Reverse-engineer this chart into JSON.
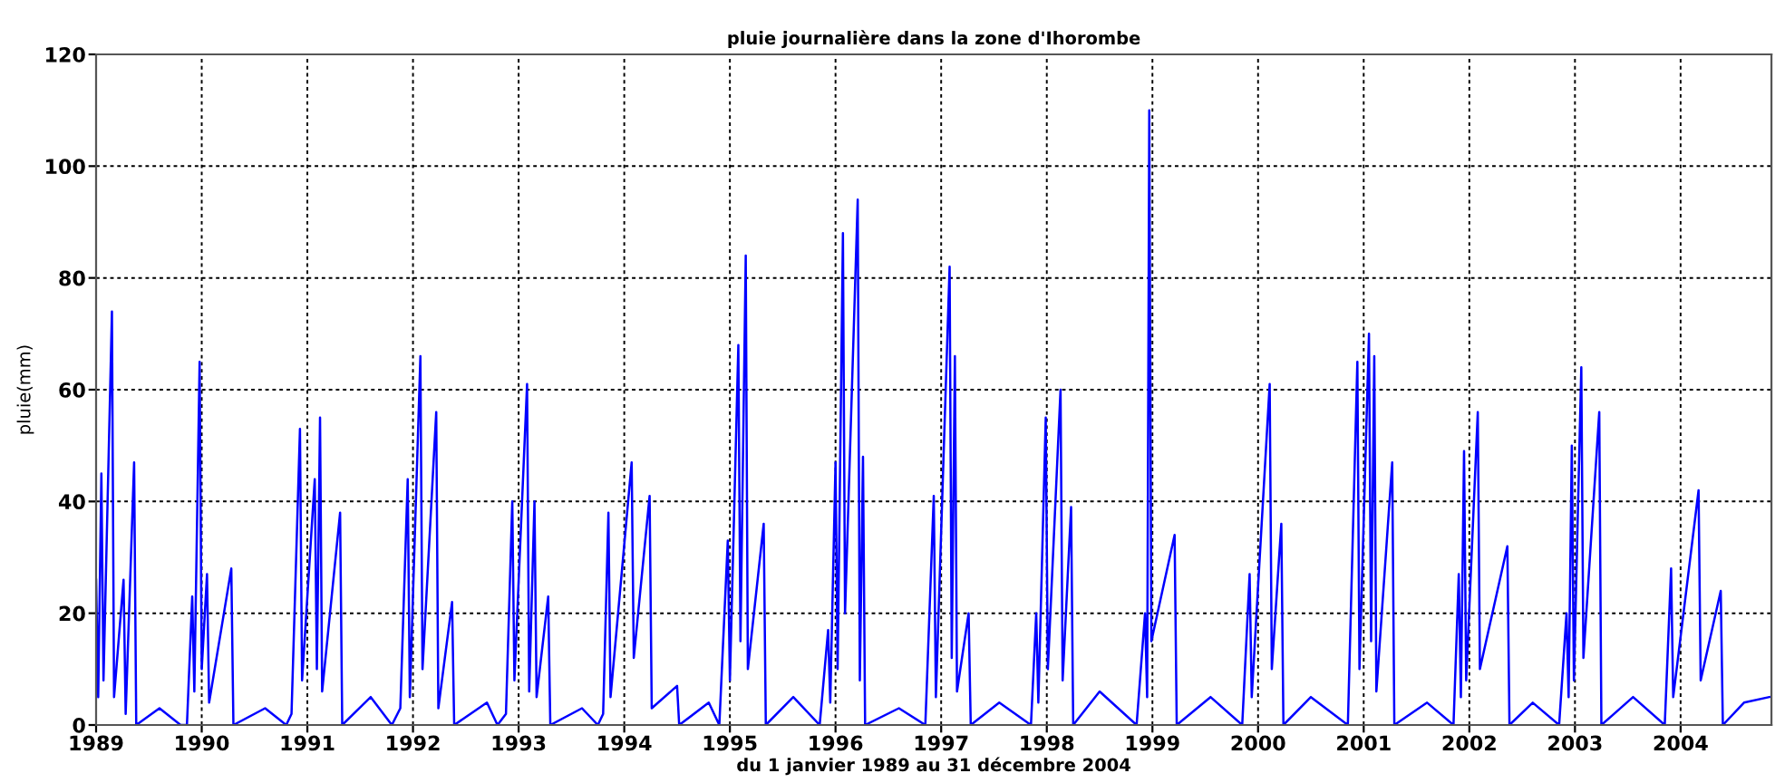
{
  "chart_data": {
    "type": "line",
    "title": "pluie journalière dans la zone d'Ihorombe",
    "xlabel": "du 1 janvier 1989 au 31 décembre 2004",
    "ylabel": "pluie(mm)",
    "series": [
      {
        "color": "#0000ff",
        "x": [
          1989.0,
          1989.02,
          1989.05,
          1989.07,
          1989.15,
          1989.17,
          1989.26,
          1989.28,
          1989.36,
          1989.38,
          1989.6,
          1989.8,
          1989.86,
          1989.91,
          1989.93,
          1989.98,
          1990.0,
          1990.05,
          1990.07,
          1990.28,
          1990.3,
          1990.6,
          1990.8,
          1990.85,
          1990.93,
          1990.95,
          1991.07,
          1991.09,
          1991.12,
          1991.14,
          1991.31,
          1991.33,
          1991.6,
          1991.8,
          1991.88,
          1991.95,
          1991.97,
          1992.07,
          1992.09,
          1992.22,
          1992.24,
          1992.37,
          1992.39,
          1992.7,
          1992.8,
          1992.88,
          1992.94,
          1992.96,
          1993.08,
          1993.1,
          1993.15,
          1993.17,
          1993.28,
          1993.3,
          1993.6,
          1993.75,
          1993.8,
          1993.85,
          1993.87,
          1994.07,
          1994.09,
          1994.24,
          1994.26,
          1994.5,
          1994.52,
          1994.8,
          1994.9,
          1994.98,
          1995.0,
          1995.08,
          1995.1,
          1995.15,
          1995.17,
          1995.32,
          1995.34,
          1995.6,
          1995.85,
          1995.93,
          1995.95,
          1996.0,
          1996.02,
          1996.07,
          1996.09,
          1996.21,
          1996.23,
          1996.26,
          1996.28,
          1996.6,
          1996.85,
          1996.93,
          1996.95,
          1997.08,
          1997.1,
          1997.13,
          1997.15,
          1997.26,
          1997.28,
          1997.55,
          1997.85,
          1997.9,
          1997.92,
          1997.99,
          1998.01,
          1998.13,
          1998.15,
          1998.23,
          1998.25,
          1998.5,
          1998.85,
          1998.93,
          1998.95,
          1998.97,
          1998.99,
          1999.21,
          1999.23,
          1999.55,
          1999.85,
          1999.92,
          1999.94,
          2000.11,
          2000.13,
          2000.22,
          2000.24,
          2000.5,
          2000.85,
          2000.94,
          2000.96,
          2001.05,
          2001.07,
          2001.1,
          2001.12,
          2001.27,
          2001.29,
          2001.6,
          2001.85,
          2001.9,
          2001.92,
          2001.95,
          2001.97,
          2002.08,
          2002.1,
          2002.36,
          2002.38,
          2002.6,
          2002.85,
          2002.92,
          2002.94,
          2002.97,
          2002.99,
          2003.06,
          2003.08,
          2003.23,
          2003.25,
          2003.55,
          2003.85,
          2003.91,
          2003.93,
          2004.17,
          2004.19,
          2004.38,
          2004.4,
          2004.6,
          2004.84
        ],
        "values": [
          26,
          5,
          45,
          8,
          74,
          5,
          26,
          2,
          47,
          0,
          3,
          0,
          0,
          23,
          6,
          65,
          10,
          27,
          4,
          28,
          0,
          3,
          0,
          2,
          53,
          8,
          44,
          10,
          55,
          6,
          38,
          0,
          5,
          0,
          3,
          44,
          5,
          66,
          10,
          56,
          3,
          22,
          0,
          4,
          0,
          2,
          40,
          8,
          61,
          6,
          40,
          5,
          23,
          0,
          3,
          0,
          2,
          38,
          5,
          47,
          12,
          41,
          3,
          7,
          0,
          4,
          0,
          33,
          8,
          68,
          15,
          84,
          10,
          36,
          0,
          5,
          0,
          17,
          4,
          47,
          10,
          88,
          20,
          94,
          8,
          48,
          0,
          3,
          0,
          41,
          5,
          82,
          12,
          66,
          6,
          20,
          0,
          4,
          0,
          20,
          4,
          55,
          10,
          60,
          8,
          39,
          0,
          6,
          0,
          20,
          5,
          110,
          15,
          34,
          0,
          5,
          0,
          27,
          5,
          61,
          10,
          36,
          0,
          5,
          0,
          65,
          10,
          70,
          15,
          66,
          6,
          47,
          0,
          4,
          0,
          27,
          5,
          49,
          8,
          56,
          10,
          32,
          0,
          4,
          0,
          20,
          5,
          50,
          8,
          64,
          12,
          56,
          0,
          5,
          0,
          28,
          5,
          42,
          8,
          24,
          0,
          4,
          5
        ]
      }
    ],
    "xlim": [
      1989,
      2004.86
    ],
    "xticks": [
      1989,
      1990,
      1991,
      1992,
      1993,
      1994,
      1995,
      1996,
      1997,
      1998,
      1999,
      2000,
      2001,
      2002,
      2003,
      2004
    ],
    "ylim": [
      0,
      120
    ],
    "yticks": [
      0,
      20,
      40,
      60,
      80,
      100,
      120
    ],
    "grid": true,
    "line_style": "solid",
    "marker": "none"
  }
}
